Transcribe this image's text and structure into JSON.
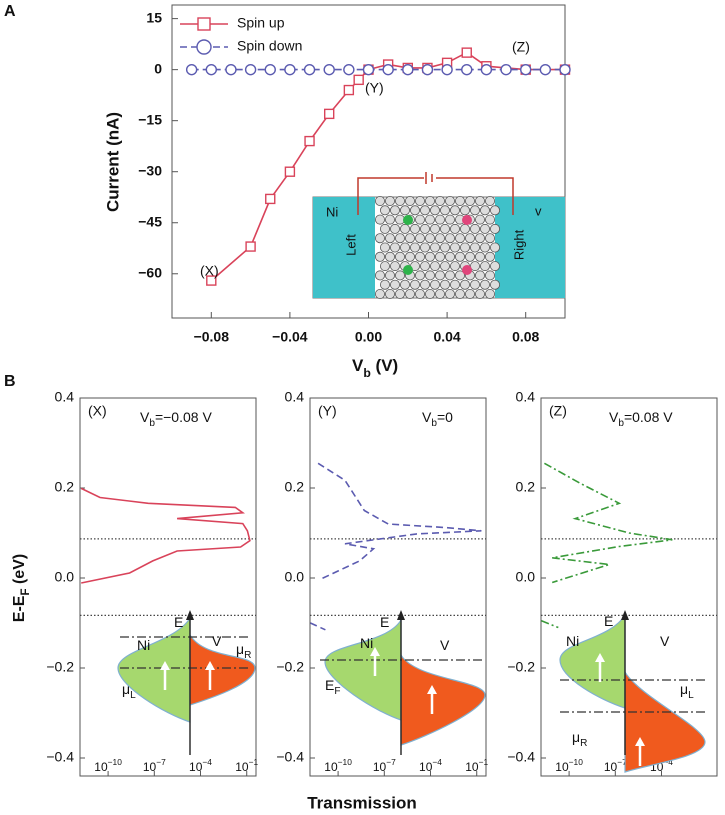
{
  "panel_labels": [
    "A",
    "B"
  ],
  "chart_data": [
    {
      "type": "line",
      "y_label": "Current (nA)",
      "x_label": {
        "main": "V",
        "sub": "b",
        "unit": " (V)"
      },
      "xlim": [
        -0.1,
        0.1
      ],
      "ylim": [
        -73,
        19
      ],
      "xticks": [
        {
          "value": -0.08,
          "label": "−0.08"
        },
        {
          "value": -0.04,
          "label": "−0.04"
        },
        {
          "value": 0,
          "label": "0.00"
        },
        0.04,
        0.08
      ],
      "yticks": [
        15,
        0,
        {
          "value": -15,
          "label": "−15"
        },
        {
          "value": -30,
          "label": "−30"
        },
        {
          "value": -45,
          "label": "−45"
        },
        {
          "value": -60,
          "label": "−60"
        }
      ],
      "series": [
        {
          "name": "Spin up",
          "color": "#d9435a",
          "marker": "square",
          "dash": "solid",
          "x": [
            -0.08,
            -0.06,
            -0.05,
            -0.04,
            -0.03,
            -0.02,
            -0.01,
            -0.005,
            0,
            0.01,
            0.02,
            0.03,
            0.04,
            0.05,
            0.06,
            0.08,
            0.1
          ],
          "values": [
            -62,
            -52,
            -38,
            -30,
            -21,
            -13,
            -6,
            -3,
            0,
            1.5,
            0.5,
            0.5,
            2,
            5,
            1,
            0,
            0
          ]
        },
        {
          "name": "Spin down",
          "color": "#5b5bb0",
          "marker": "circle",
          "dash": "dashed",
          "x": [
            -0.09,
            -0.08,
            -0.07,
            -0.06,
            -0.05,
            -0.04,
            -0.03,
            -0.02,
            -0.01,
            0,
            0.01,
            0.02,
            0.03,
            0.04,
            0.05,
            0.06,
            0.07,
            0.08,
            0.09,
            0.1
          ],
          "values": [
            0,
            0,
            0,
            0,
            0,
            0,
            0,
            0,
            0,
            0,
            0,
            0,
            0,
            0,
            0,
            0,
            0,
            0,
            0,
            0
          ]
        }
      ],
      "annotations": [
        "(X)",
        "(Y)",
        "(Z)"
      ],
      "inset_labels": [
        "Ni",
        "Left",
        "Right",
        "v"
      ]
    },
    {
      "type": "line",
      "xscale": "log",
      "title": "(X)",
      "bias_label": {
        "main": "V",
        "sub": "b",
        "rest": "=−0.08 V"
      },
      "y_label": {
        "main": "E-E",
        "sub": "F",
        "unit": " (eV)"
      },
      "xlim": [
        1.5e-12,
        0.4
      ],
      "ylim": [
        -0.44,
        0.4
      ],
      "xticks": [
        {
          "value": 1e-10,
          "label": "10",
          "exponent": "−10"
        },
        {
          "value": 1e-07,
          "label": "10",
          "exponent": "−7"
        },
        {
          "value": 0.0001,
          "label": "10",
          "exponent": "−4"
        },
        {
          "value": 0.1,
          "label": "10",
          "exponent": "−1"
        }
      ],
      "yticks": [
        0.4,
        0.2,
        {
          "value": 0,
          "label": "0.0"
        },
        {
          "value": -0.2,
          "label": "−0.2"
        },
        {
          "value": -0.4,
          "label": "−0.4"
        }
      ],
      "hlines": [
        0.087,
        -0.083
      ],
      "series": [
        {
          "color": "#d9435a",
          "dash": "solid",
          "x": [
            1.8e-12,
            3e-11,
            4e-08,
            0.018,
            0.056,
            3e-06,
            0.056,
            0.11,
            0.16,
            0.04,
            3e-06,
            8e-08,
            2.5e-09,
            1.8e-12
          ],
          "values": [
            0.199,
            0.179,
            0.166,
            0.157,
            0.145,
            0.132,
            0.121,
            0.105,
            0.083,
            0.069,
            0.06,
            0.038,
            0.011,
            -0.011
          ]
        }
      ],
      "inset_labels": [
        {
          "text": "Ni"
        },
        {
          "text": "E"
        },
        {
          "text": "V"
        },
        {
          "text": "μ",
          "sub": "R"
        },
        {
          "text": "μ",
          "sub": "L"
        }
      ]
    },
    {
      "type": "line",
      "xscale": "log",
      "title": "(Y)",
      "bias_label": {
        "main": "V",
        "sub": "b",
        "rest": "=0"
      },
      "x_label": "Transmission",
      "xlim": [
        1.5e-12,
        0.4
      ],
      "ylim": [
        -0.44,
        0.4
      ],
      "xticks": [
        {
          "value": 1e-10,
          "label": "10",
          "exponent": "−10"
        },
        {
          "value": 1e-07,
          "label": "10",
          "exponent": "−7"
        },
        {
          "value": 0.0001,
          "label": "10",
          "exponent": "−4"
        },
        {
          "value": 0.1,
          "label": "10",
          "exponent": "−1"
        }
      ],
      "yticks": [
        0.4,
        0.2,
        {
          "value": 0,
          "label": "0.0"
        },
        {
          "value": -0.2,
          "label": "−0.2"
        },
        {
          "value": -0.4,
          "label": "−0.4"
        }
      ],
      "hlines": [
        0.087,
        -0.083
      ],
      "series": [
        {
          "color": "#5b5bb0",
          "dash": "dashed",
          "x": [
            5e-12,
            2.8e-10,
            5e-09,
            1.8e-07,
            0.001,
            0.2,
            1.3e-05,
            2.8e-10,
            2e-08,
            2.5e-09,
            8e-12,
            null,
            1.6e-12,
            1.5e-11
          ],
          "values": [
            0.255,
            0.217,
            0.15,
            0.12,
            0.112,
            0.105,
            0.098,
            0.076,
            0.065,
            0.038,
            -0.002,
            null,
            -0.1,
            -0.115
          ]
        }
      ],
      "inset_labels": [
        {
          "text": "Ni"
        },
        {
          "text": "E"
        },
        {
          "text": "V"
        },
        {
          "text": "E",
          "sub": "F"
        }
      ]
    },
    {
      "type": "line",
      "xscale": "log",
      "title": "(Z)",
      "bias_label": {
        "main": "V",
        "sub": "b",
        "rest": "=0.08 V"
      },
      "xlim": [
        1.5e-12,
        0.4
      ],
      "ylim": [
        -0.44,
        0.4
      ],
      "xticks": [
        {
          "value": 1e-10,
          "label": "10",
          "exponent": "−10"
        },
        {
          "value": 1e-07,
          "label": "10",
          "exponent": "−7"
        },
        {
          "value": 0.0001,
          "label": "10",
          "exponent": "−4"
        }
      ],
      "yticks": [
        0.4,
        0.2,
        {
          "value": 0,
          "label": "0.0"
        },
        {
          "value": -0.2,
          "label": "−0.2"
        },
        {
          "value": -0.4,
          "label": "−0.4"
        }
      ],
      "hlines": [
        0.087,
        -0.083
      ],
      "series": [
        {
          "color": "#3a9a3a",
          "dash": "dashdot",
          "x": [
            2.5e-12,
            5.6e-10,
            1.8e-07,
            2.5e-10,
            8e-07,
            0.0005,
            1.8e-07,
            8e-12,
            4e-08,
            8e-12,
            null,
            1.6e-12,
            2e-11
          ],
          "values": [
            0.255,
            0.21,
            0.166,
            0.132,
            0.1,
            0.085,
            0.07,
            0.045,
            0.03,
            -0.01,
            null,
            -0.095,
            -0.11
          ]
        }
      ],
      "inset_labels": [
        {
          "text": "Ni"
        },
        {
          "text": "E"
        },
        {
          "text": "V"
        },
        {
          "text": "μ",
          "sub": "L"
        },
        {
          "text": "μ",
          "sub": "R"
        }
      ]
    }
  ]
}
